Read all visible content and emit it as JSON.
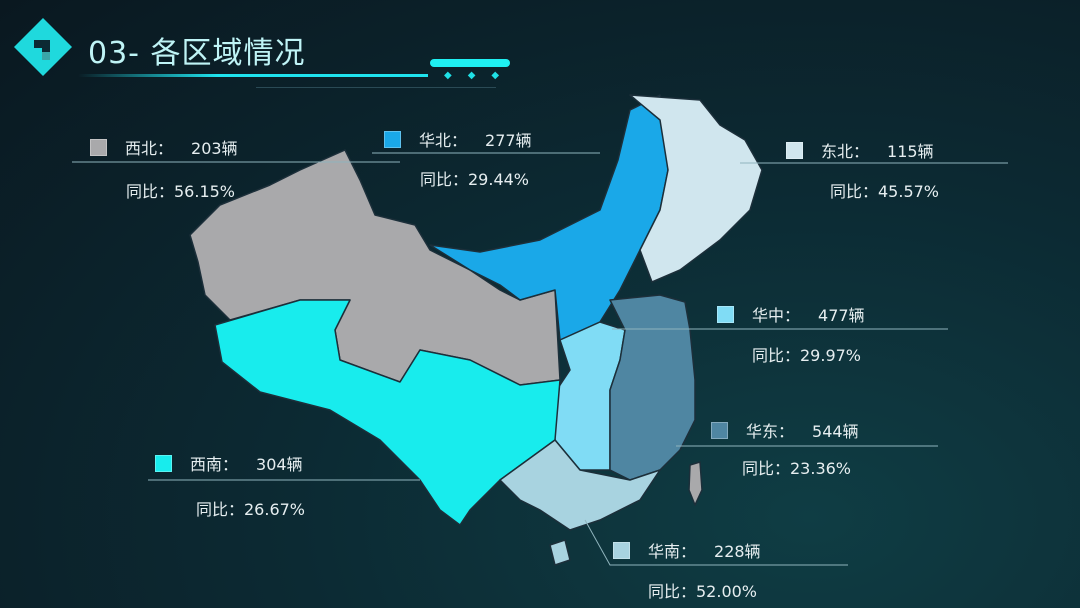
{
  "header": {
    "title": "03- 各区域情况",
    "logo_icon": "diamond-logo-icon"
  },
  "colors": {
    "accent": "#1fe3ee",
    "northwest": "#a9a9ab",
    "north": "#1aa8e8",
    "northeast": "#d0e6ee",
    "central": "#80dcf5",
    "east": "#4f86a2",
    "south": "#a8d3e0",
    "southwest": "#18eced",
    "taiwan": "#a9a9ab"
  },
  "regions": [
    {
      "key": "northwest",
      "name": "西北：",
      "count": "203辆",
      "yoy": "同比：56.15%"
    },
    {
      "key": "north",
      "name": "华北：",
      "count": "277辆",
      "yoy": "同比：29.44%"
    },
    {
      "key": "northeast",
      "name": "东北：",
      "count": "115辆",
      "yoy": "同比：45.57%"
    },
    {
      "key": "central",
      "name": "华中：",
      "count": "477辆",
      "yoy": "同比：29.97%"
    },
    {
      "key": "east",
      "name": "华东：",
      "count": "544辆",
      "yoy": "同比：23.36%"
    },
    {
      "key": "southwest",
      "name": "西南：",
      "count": "304辆",
      "yoy": "同比：26.67%"
    },
    {
      "key": "south",
      "name": "华南：",
      "count": "228辆",
      "yoy": "同比：52.00%"
    }
  ]
}
